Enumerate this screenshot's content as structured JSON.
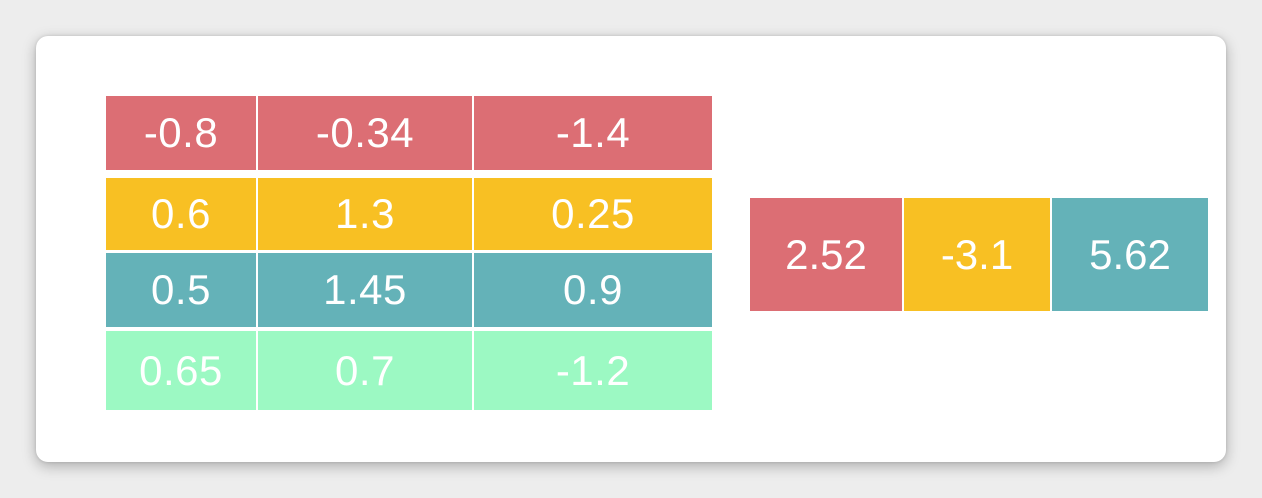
{
  "colors": {
    "red": "#dc6e74",
    "yellow": "#f8c023",
    "teal": "#64b2b8",
    "mint": "#9cf9c3"
  },
  "matrix": {
    "rows": [
      {
        "color": "#dc6e74",
        "cells": [
          "-0.8",
          "-0.34",
          "-1.4"
        ]
      },
      {
        "color": "#f8c023",
        "cells": [
          "0.6",
          "1.3",
          "0.25"
        ]
      },
      {
        "color": "#64b2b8",
        "cells": [
          "0.5",
          "1.45",
          "0.9"
        ]
      },
      {
        "color": "#9cf9c3",
        "cells": [
          "0.65",
          "0.7",
          "-1.2"
        ]
      }
    ]
  },
  "vector": {
    "cells": [
      {
        "value": "2.52",
        "color": "#dc6e74"
      },
      {
        "value": "-3.1",
        "color": "#f8c023"
      },
      {
        "value": "5.62",
        "color": "#64b2b8"
      }
    ]
  }
}
